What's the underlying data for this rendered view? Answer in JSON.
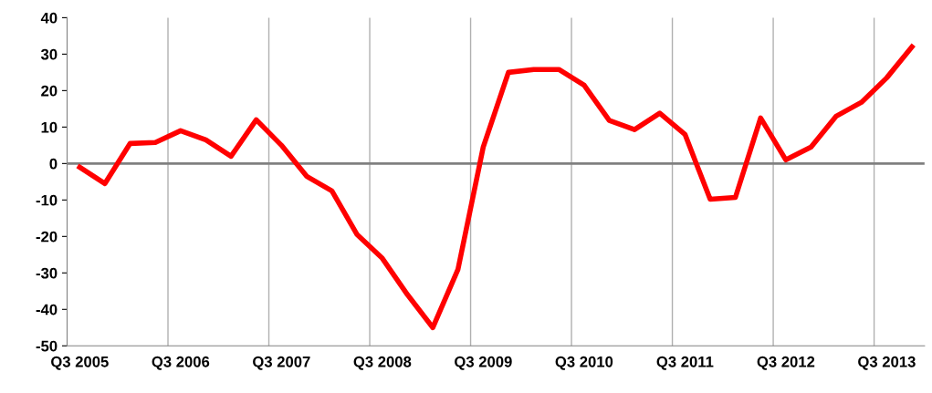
{
  "chart_data": {
    "type": "line",
    "categories": [
      "Q3 2005",
      null,
      null,
      null,
      "Q3 2006",
      null,
      null,
      null,
      "Q3 2007",
      null,
      null,
      null,
      "Q3 2008",
      null,
      null,
      null,
      "Q3 2009",
      null,
      null,
      null,
      "Q3 2010",
      null,
      null,
      null,
      "Q3 2011",
      null,
      null,
      null,
      "Q3 2012",
      null,
      null,
      null,
      "Q3 2013",
      null
    ],
    "series": [
      {
        "color": "#ff0000",
        "values": [
          -1,
          -5.5,
          5.5,
          5.8,
          9,
          6.5,
          2,
          12,
          5,
          -3.5,
          -7.5,
          -19.5,
          -26,
          -36,
          -45,
          -29,
          4.5,
          25,
          25.8,
          25.8,
          21.5,
          11.8,
          9.3,
          13.8,
          8,
          -9.8,
          -9.3,
          12.5,
          1,
          4.5,
          13,
          16.8,
          23.5,
          32
        ]
      }
    ],
    "ylim": [
      -50,
      40
    ],
    "yticks": [
      -50,
      -40,
      -30,
      -20,
      -10,
      0,
      10,
      20,
      30,
      40
    ],
    "grid": "x",
    "marker": "none",
    "line_style": "solid",
    "ref_lines": [
      {
        "axis": "y",
        "value": 0,
        "color": "#808080"
      }
    ]
  }
}
